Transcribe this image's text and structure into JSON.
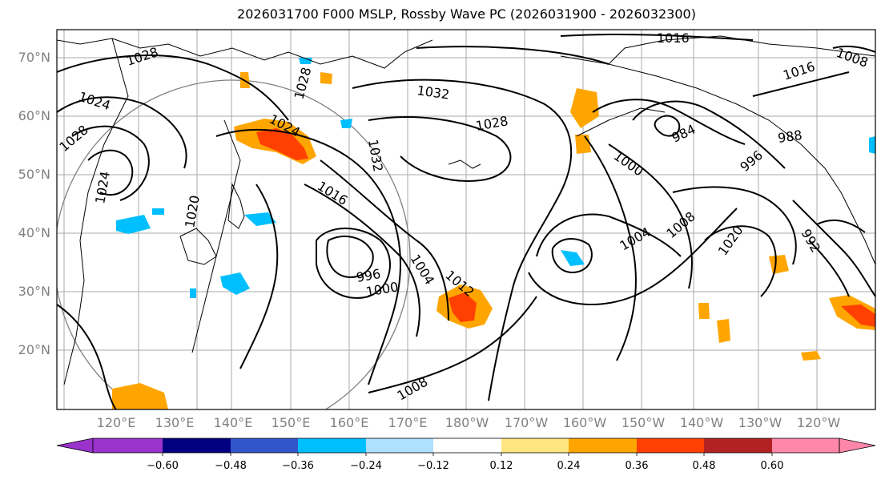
{
  "title": "2026031700 F000 MSLP, Rossby Wave PC (2026031900 - 2026032300)",
  "lat_labels": [
    "70°N",
    "60°N",
    "50°N",
    "40°N",
    "30°N",
    "20°N"
  ],
  "lon_labels": [
    "120°E",
    "130°E",
    "140°E",
    "150°E",
    "160°E",
    "170°E",
    "180°W",
    "170°W",
    "160°W",
    "150°W",
    "140°W",
    "130°W",
    "120°W"
  ],
  "contour_labels": [
    "1028",
    "1024",
    "1028",
    "1024",
    "1028",
    "1032",
    "1028",
    "1016",
    "1020",
    "1024",
    "1032",
    "1016",
    "996",
    "1000",
    "1004",
    "1008",
    "1012",
    "1008",
    "984",
    "1000",
    "1004",
    "1008",
    "1020",
    "1016",
    "988",
    "996",
    "992"
  ],
  "colorbar": {
    "ticks": [
      "−0.60",
      "−0.48",
      "−0.36",
      "−0.24",
      "−0.12",
      "0.12",
      "0.24",
      "0.36",
      "0.48",
      "0.60"
    ],
    "colors": [
      "#9933cc",
      "#000080",
      "#3355cc",
      "#00bfff",
      "#aee0ff",
      "#ffffff",
      "#ffe680",
      "#ffa500",
      "#ff4000",
      "#b22222",
      "#ff88aa"
    ]
  }
}
